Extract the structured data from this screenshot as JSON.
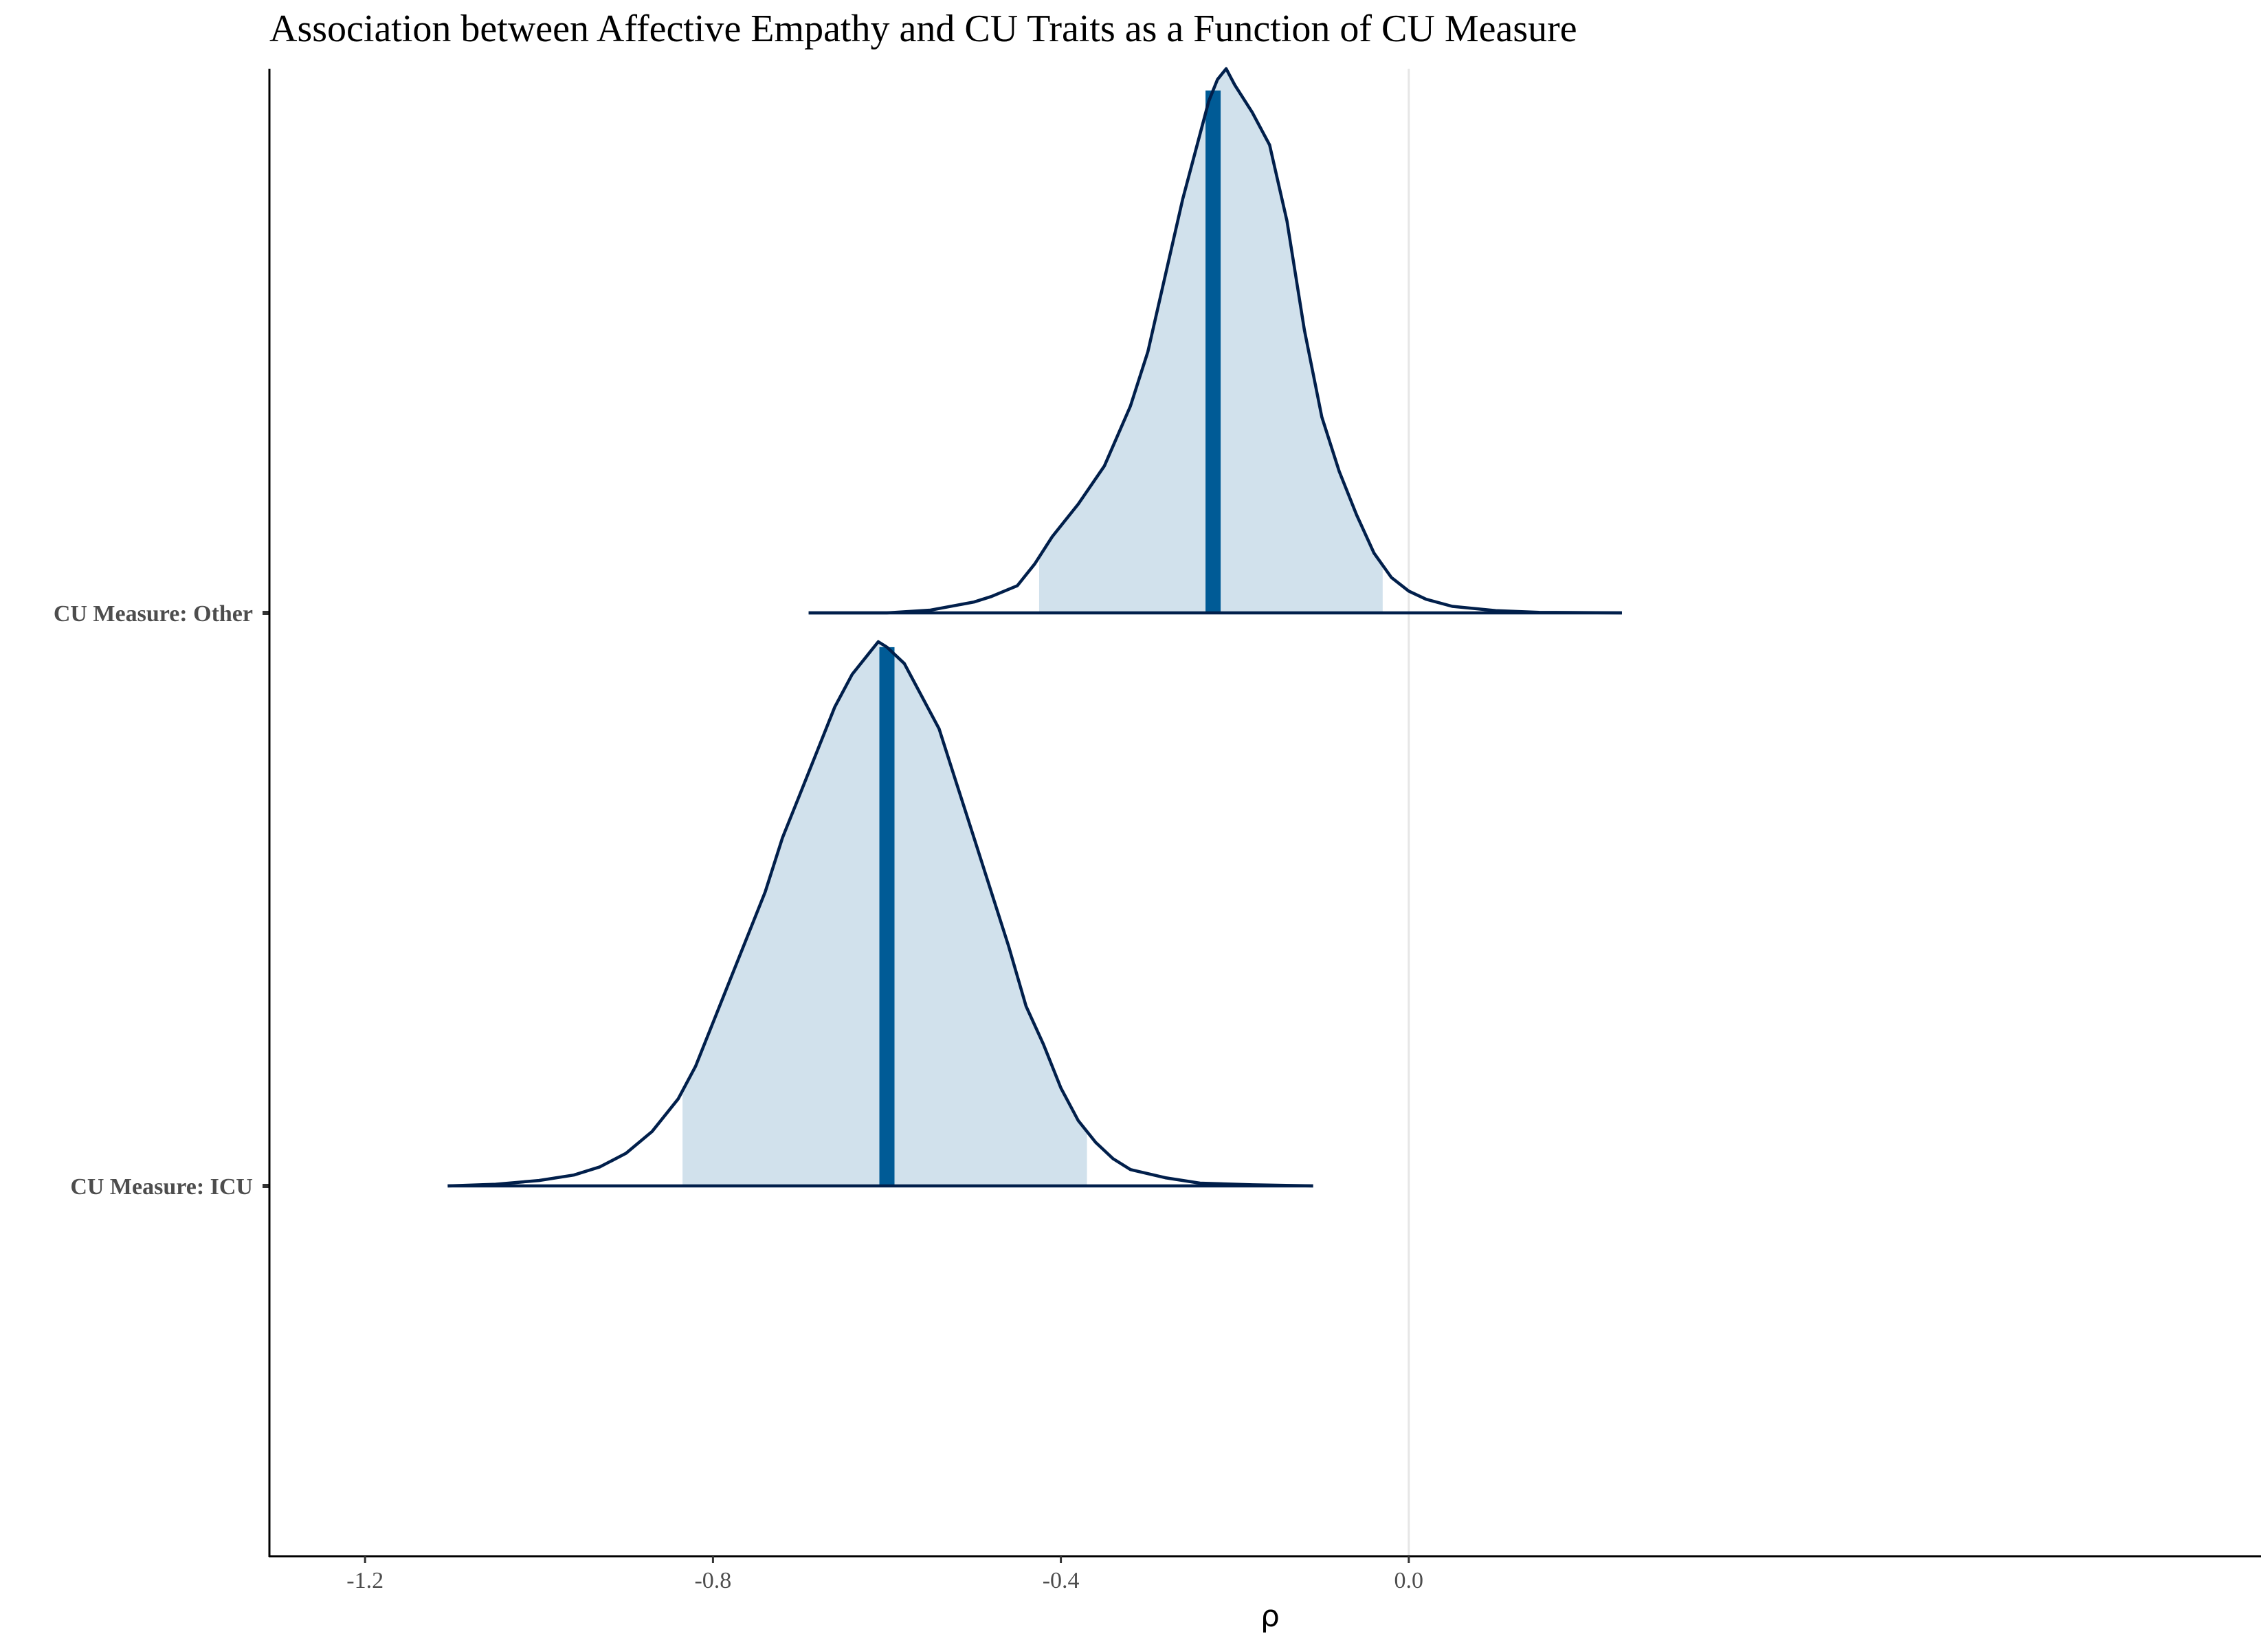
{
  "chart_data": {
    "type": "area",
    "title": "Association between Affective Empathy and CU Traits as a Function of CU Measure",
    "xlabel": "ρ",
    "ylabel": "",
    "xlim": [
      -1.31,
      0.98
    ],
    "x_ticks": [
      -1.2,
      -0.8,
      -0.4,
      0.0
    ],
    "x_tick_labels": [
      "-1.2",
      "-0.8",
      "-0.4",
      "0.0"
    ],
    "reference_line_x": 0.0,
    "grid": false,
    "legend": "none",
    "colors": {
      "interval_fill": "#d1e1ec",
      "outline": "#011f4b",
      "median": "#005b96",
      "reference_line": "#e6e6e6",
      "axis": "#000000"
    },
    "categories": [
      "CU Measure: Other",
      "CU Measure: ICU"
    ],
    "series": [
      {
        "name": "CU Measure: Other",
        "median": -0.225,
        "interval": [
          -0.425,
          -0.03
        ],
        "range": [
          -0.69,
          0.245
        ],
        "density": [
          [
            -0.69,
            0.0
          ],
          [
            -0.6,
            0.0
          ],
          [
            -0.55,
            0.005
          ],
          [
            -0.5,
            0.02
          ],
          [
            -0.48,
            0.03
          ],
          [
            -0.45,
            0.05
          ],
          [
            -0.43,
            0.09
          ],
          [
            -0.41,
            0.14
          ],
          [
            -0.38,
            0.2
          ],
          [
            -0.35,
            0.27
          ],
          [
            -0.32,
            0.38
          ],
          [
            -0.3,
            0.48
          ],
          [
            -0.28,
            0.62
          ],
          [
            -0.26,
            0.76
          ],
          [
            -0.24,
            0.88
          ],
          [
            -0.23,
            0.94
          ],
          [
            -0.22,
            0.98
          ],
          [
            -0.21,
            1.0
          ],
          [
            -0.2,
            0.97
          ],
          [
            -0.18,
            0.92
          ],
          [
            -0.16,
            0.86
          ],
          [
            -0.14,
            0.72
          ],
          [
            -0.12,
            0.52
          ],
          [
            -0.1,
            0.36
          ],
          [
            -0.08,
            0.26
          ],
          [
            -0.06,
            0.18
          ],
          [
            -0.04,
            0.11
          ],
          [
            -0.02,
            0.065
          ],
          [
            0.0,
            0.04
          ],
          [
            0.02,
            0.025
          ],
          [
            0.05,
            0.012
          ],
          [
            0.1,
            0.004
          ],
          [
            0.15,
            0.001
          ],
          [
            0.245,
            0.0
          ]
        ]
      },
      {
        "name": "CU Measure: ICU",
        "median": -0.6,
        "interval": [
          -0.835,
          -0.37
        ],
        "range": [
          -1.105,
          -0.11
        ],
        "density": [
          [
            -1.105,
            0.0
          ],
          [
            -1.05,
            0.003
          ],
          [
            -1.0,
            0.01
          ],
          [
            -0.96,
            0.02
          ],
          [
            -0.93,
            0.035
          ],
          [
            -0.9,
            0.06
          ],
          [
            -0.87,
            0.1
          ],
          [
            -0.84,
            0.16
          ],
          [
            -0.82,
            0.22
          ],
          [
            -0.8,
            0.3
          ],
          [
            -0.78,
            0.38
          ],
          [
            -0.76,
            0.46
          ],
          [
            -0.74,
            0.54
          ],
          [
            -0.72,
            0.64
          ],
          [
            -0.7,
            0.72
          ],
          [
            -0.68,
            0.8
          ],
          [
            -0.66,
            0.88
          ],
          [
            -0.64,
            0.94
          ],
          [
            -0.62,
            0.98
          ],
          [
            -0.61,
            1.0
          ],
          [
            -0.6,
            0.99
          ],
          [
            -0.58,
            0.96
          ],
          [
            -0.56,
            0.9
          ],
          [
            -0.54,
            0.84
          ],
          [
            -0.52,
            0.74
          ],
          [
            -0.5,
            0.64
          ],
          [
            -0.48,
            0.54
          ],
          [
            -0.46,
            0.44
          ],
          [
            -0.44,
            0.33
          ],
          [
            -0.42,
            0.26
          ],
          [
            -0.4,
            0.18
          ],
          [
            -0.38,
            0.12
          ],
          [
            -0.36,
            0.08
          ],
          [
            -0.34,
            0.05
          ],
          [
            -0.32,
            0.03
          ],
          [
            -0.28,
            0.015
          ],
          [
            -0.24,
            0.005
          ],
          [
            -0.18,
            0.002
          ],
          [
            -0.11,
            0.0
          ]
        ]
      }
    ]
  }
}
